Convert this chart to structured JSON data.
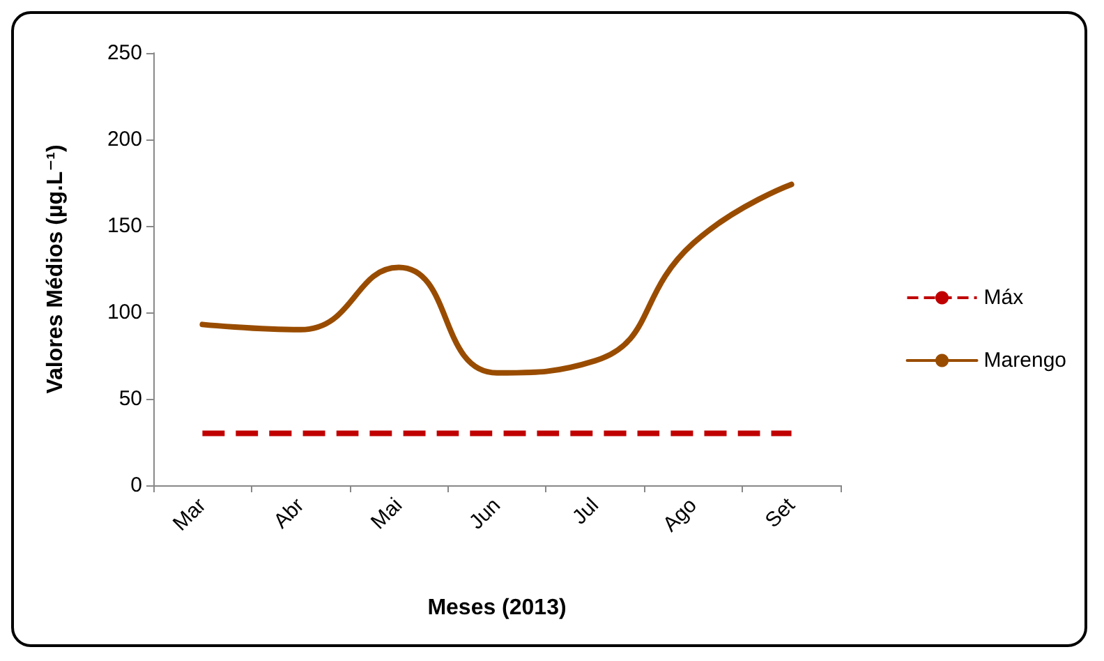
{
  "chart_data": {
    "type": "line",
    "xlabel": "Meses (2013)",
    "ylabel": "Valores Médios (µg.L⁻¹)",
    "categories": [
      "Mar",
      "Abr",
      "Mai",
      "Jun",
      "Jul",
      "Ago",
      "Set"
    ],
    "series": [
      {
        "name": "Máx",
        "color": "#c00000",
        "line_style": "dashed",
        "values": [
          30,
          30,
          30,
          30,
          30,
          30,
          30
        ]
      },
      {
        "name": "Marengo",
        "color": "#994c00",
        "line_style": "solid",
        "values": [
          93,
          90,
          126,
          65,
          72,
          140,
          174
        ]
      }
    ],
    "ylim": [
      0,
      250
    ],
    "yticks": [
      0,
      50,
      100,
      150,
      200,
      250
    ],
    "grid": false,
    "legend": "right",
    "marker": "none"
  }
}
